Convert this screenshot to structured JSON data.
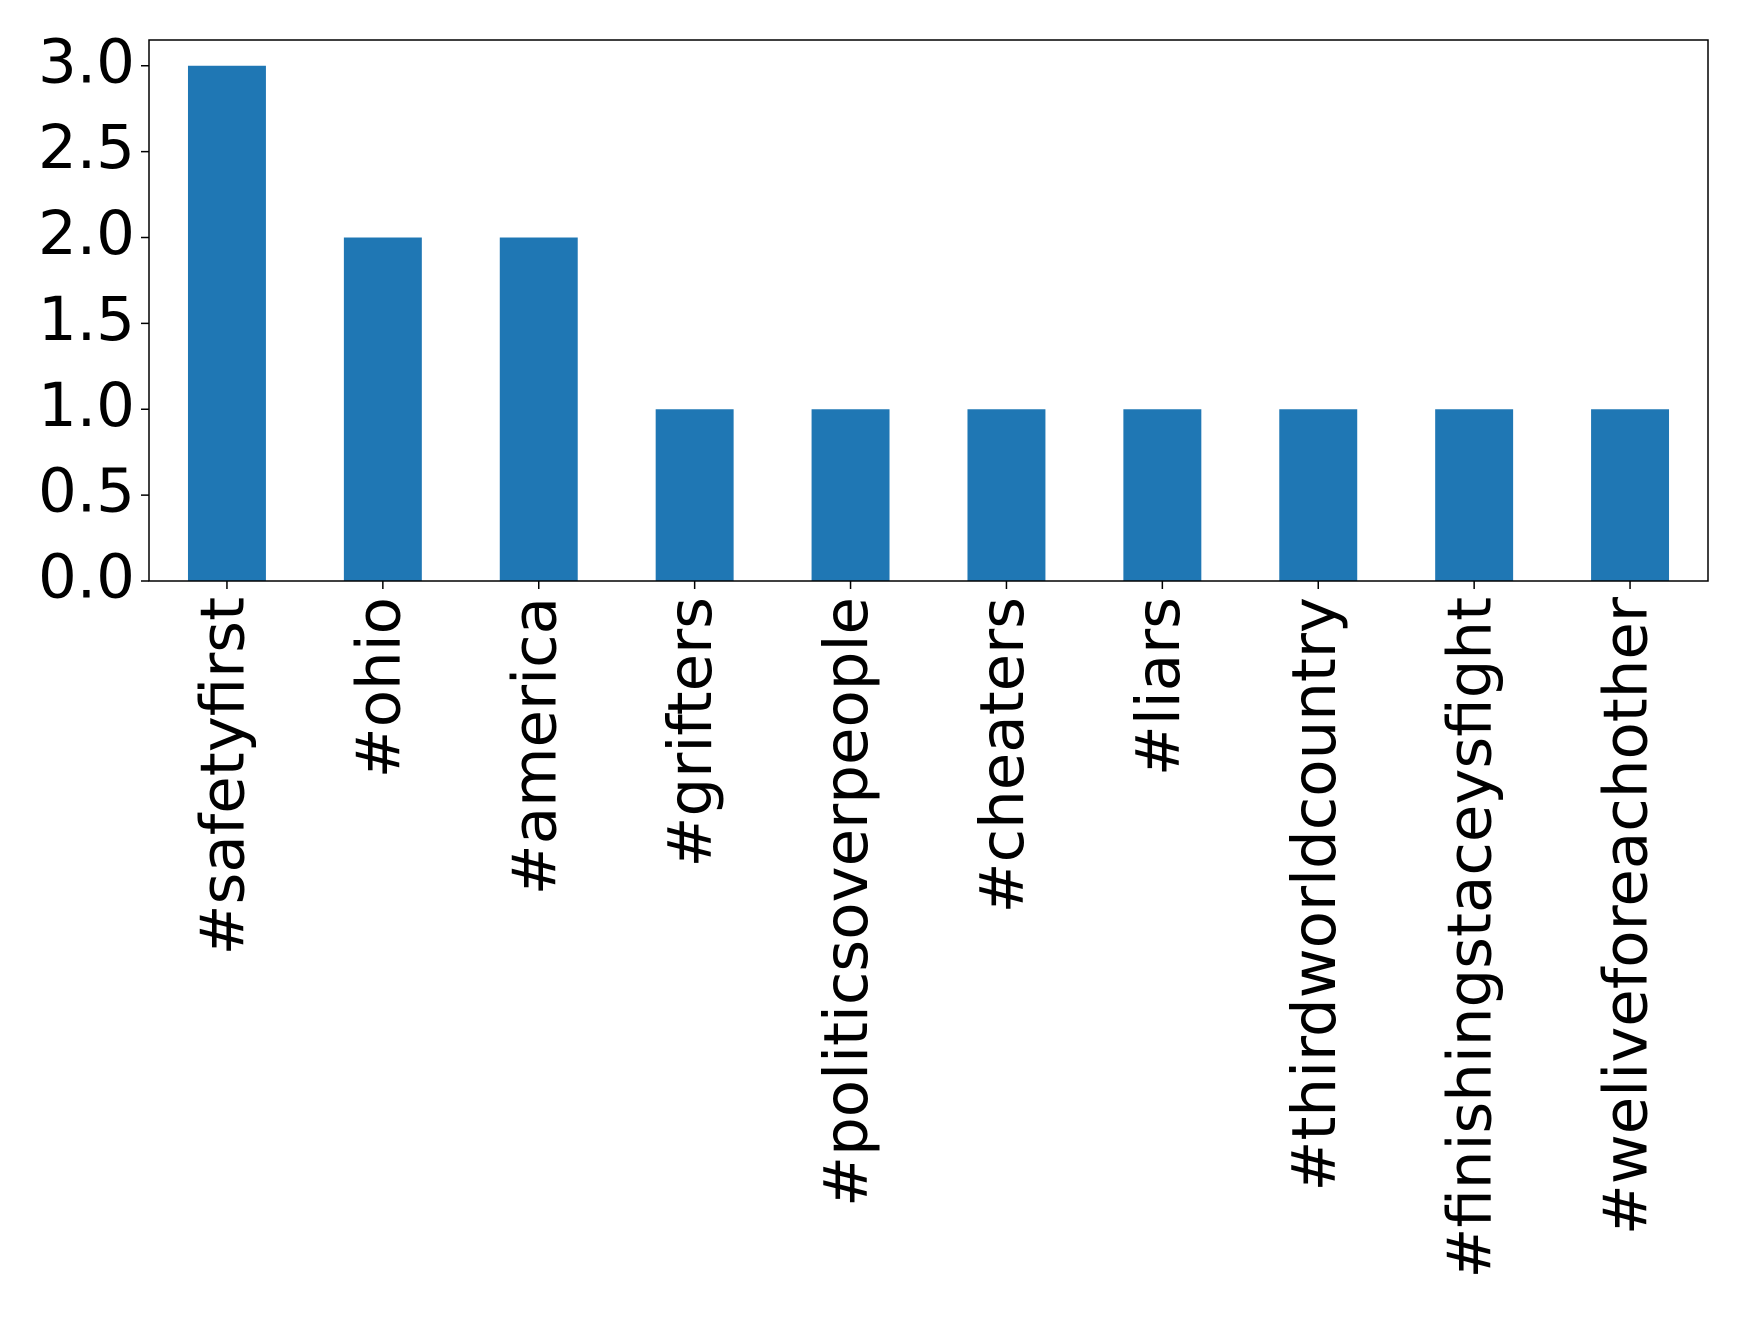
{
  "chart_data": {
    "type": "bar",
    "categories": [
      "#safetyfirst",
      "#ohio",
      "#america",
      "#grifters",
      "#politicsoverpeople",
      "#cheaters",
      "#liars",
      "#thirdworldcountry",
      "#finishingstaceysfight",
      "#weliveforeachother"
    ],
    "values": [
      3,
      2,
      2,
      1,
      1,
      1,
      1,
      1,
      1,
      1
    ],
    "color": "#1f77b4",
    "ylim": [
      0,
      3.15
    ],
    "yticks": [
      {
        "value": 0,
        "label": "0.0"
      },
      {
        "value": 0.5,
        "label": "0.5"
      },
      {
        "value": 1,
        "label": "1.0"
      },
      {
        "value": 1.5,
        "label": "1.5"
      },
      {
        "value": 2,
        "label": "2.0"
      },
      {
        "value": 2.5,
        "label": "2.5"
      },
      {
        "value": 3,
        "label": "3.0"
      }
    ],
    "grid": false
  }
}
